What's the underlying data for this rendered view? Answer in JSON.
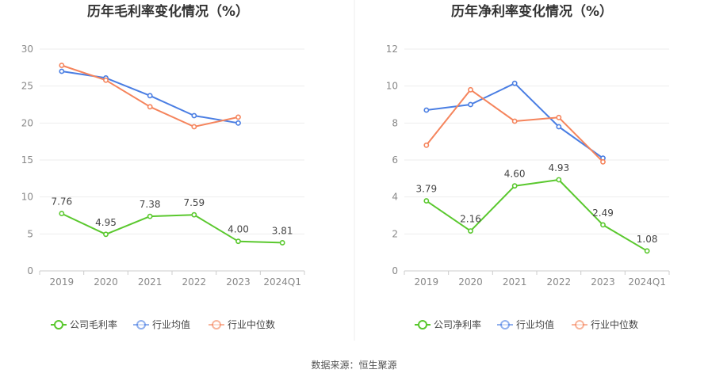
{
  "source": "数据来源：恒生聚源",
  "chart_data": [
    {
      "type": "line",
      "title": "历年毛利率变化情况（%）",
      "categories": [
        "2019",
        "2020",
        "2021",
        "2022",
        "2023",
        "2024Q1"
      ],
      "ylim": [
        0,
        30
      ],
      "yticks": [
        0,
        5,
        10,
        15,
        20,
        25,
        30
      ],
      "grid": true,
      "legend_position": "bottom",
      "series": [
        {
          "name": "公司毛利率",
          "color": "#5ac82e",
          "values": [
            7.76,
            4.95,
            7.38,
            7.59,
            4.0,
            3.81
          ],
          "labels": [
            "7.76",
            "4.95",
            "7.38",
            "7.59",
            "4.00",
            "3.81"
          ]
        },
        {
          "name": "行业均值",
          "color": "#4a7ee3",
          "values": [
            27.0,
            26.1,
            23.7,
            21.0,
            20.0,
            null
          ]
        },
        {
          "name": "行业中位数",
          "color": "#f5845c",
          "values": [
            27.8,
            25.8,
            22.2,
            19.5,
            20.8,
            null
          ]
        }
      ]
    },
    {
      "type": "line",
      "title": "历年净利率变化情况（%）",
      "categories": [
        "2019",
        "2020",
        "2021",
        "2022",
        "2023",
        "2024Q1"
      ],
      "ylim": [
        0,
        12
      ],
      "yticks": [
        0,
        2,
        4,
        6,
        8,
        10,
        12
      ],
      "grid": true,
      "legend_position": "bottom",
      "series": [
        {
          "name": "公司净利率",
          "color": "#5ac82e",
          "values": [
            3.79,
            2.16,
            4.6,
            4.93,
            2.49,
            1.08
          ],
          "labels": [
            "3.79",
            "2.16",
            "4.60",
            "4.93",
            "2.49",
            "1.08"
          ]
        },
        {
          "name": "行业均值",
          "color": "#4a7ee3",
          "values": [
            8.7,
            9.0,
            10.15,
            7.8,
            6.1,
            null
          ]
        },
        {
          "name": "行业中位数",
          "color": "#f5845c",
          "values": [
            6.8,
            9.8,
            8.1,
            8.3,
            5.9,
            null
          ]
        }
      ]
    }
  ]
}
